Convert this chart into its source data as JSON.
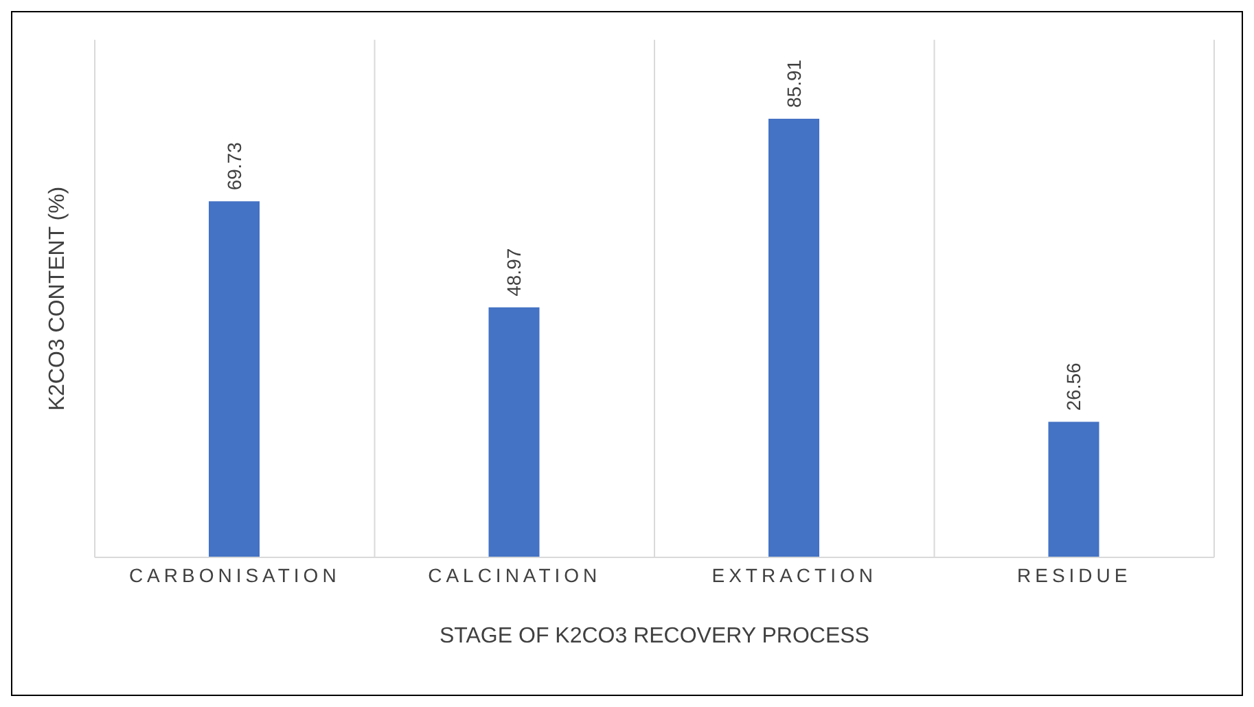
{
  "chart_data": {
    "type": "bar",
    "categories": [
      "CARBONISATION",
      "CALCINATION",
      "EXTRACTION",
      "RESIDUE"
    ],
    "values": [
      69.73,
      48.97,
      85.91,
      26.56
    ],
    "color": "#4472c4",
    "xlabel": "STAGE OF K2CO3 RECOVERY PROCESS",
    "ylabel": "K2CO3 CONTENT (%)",
    "data_labels": true,
    "grid": "x",
    "tick_labels": "x"
  }
}
